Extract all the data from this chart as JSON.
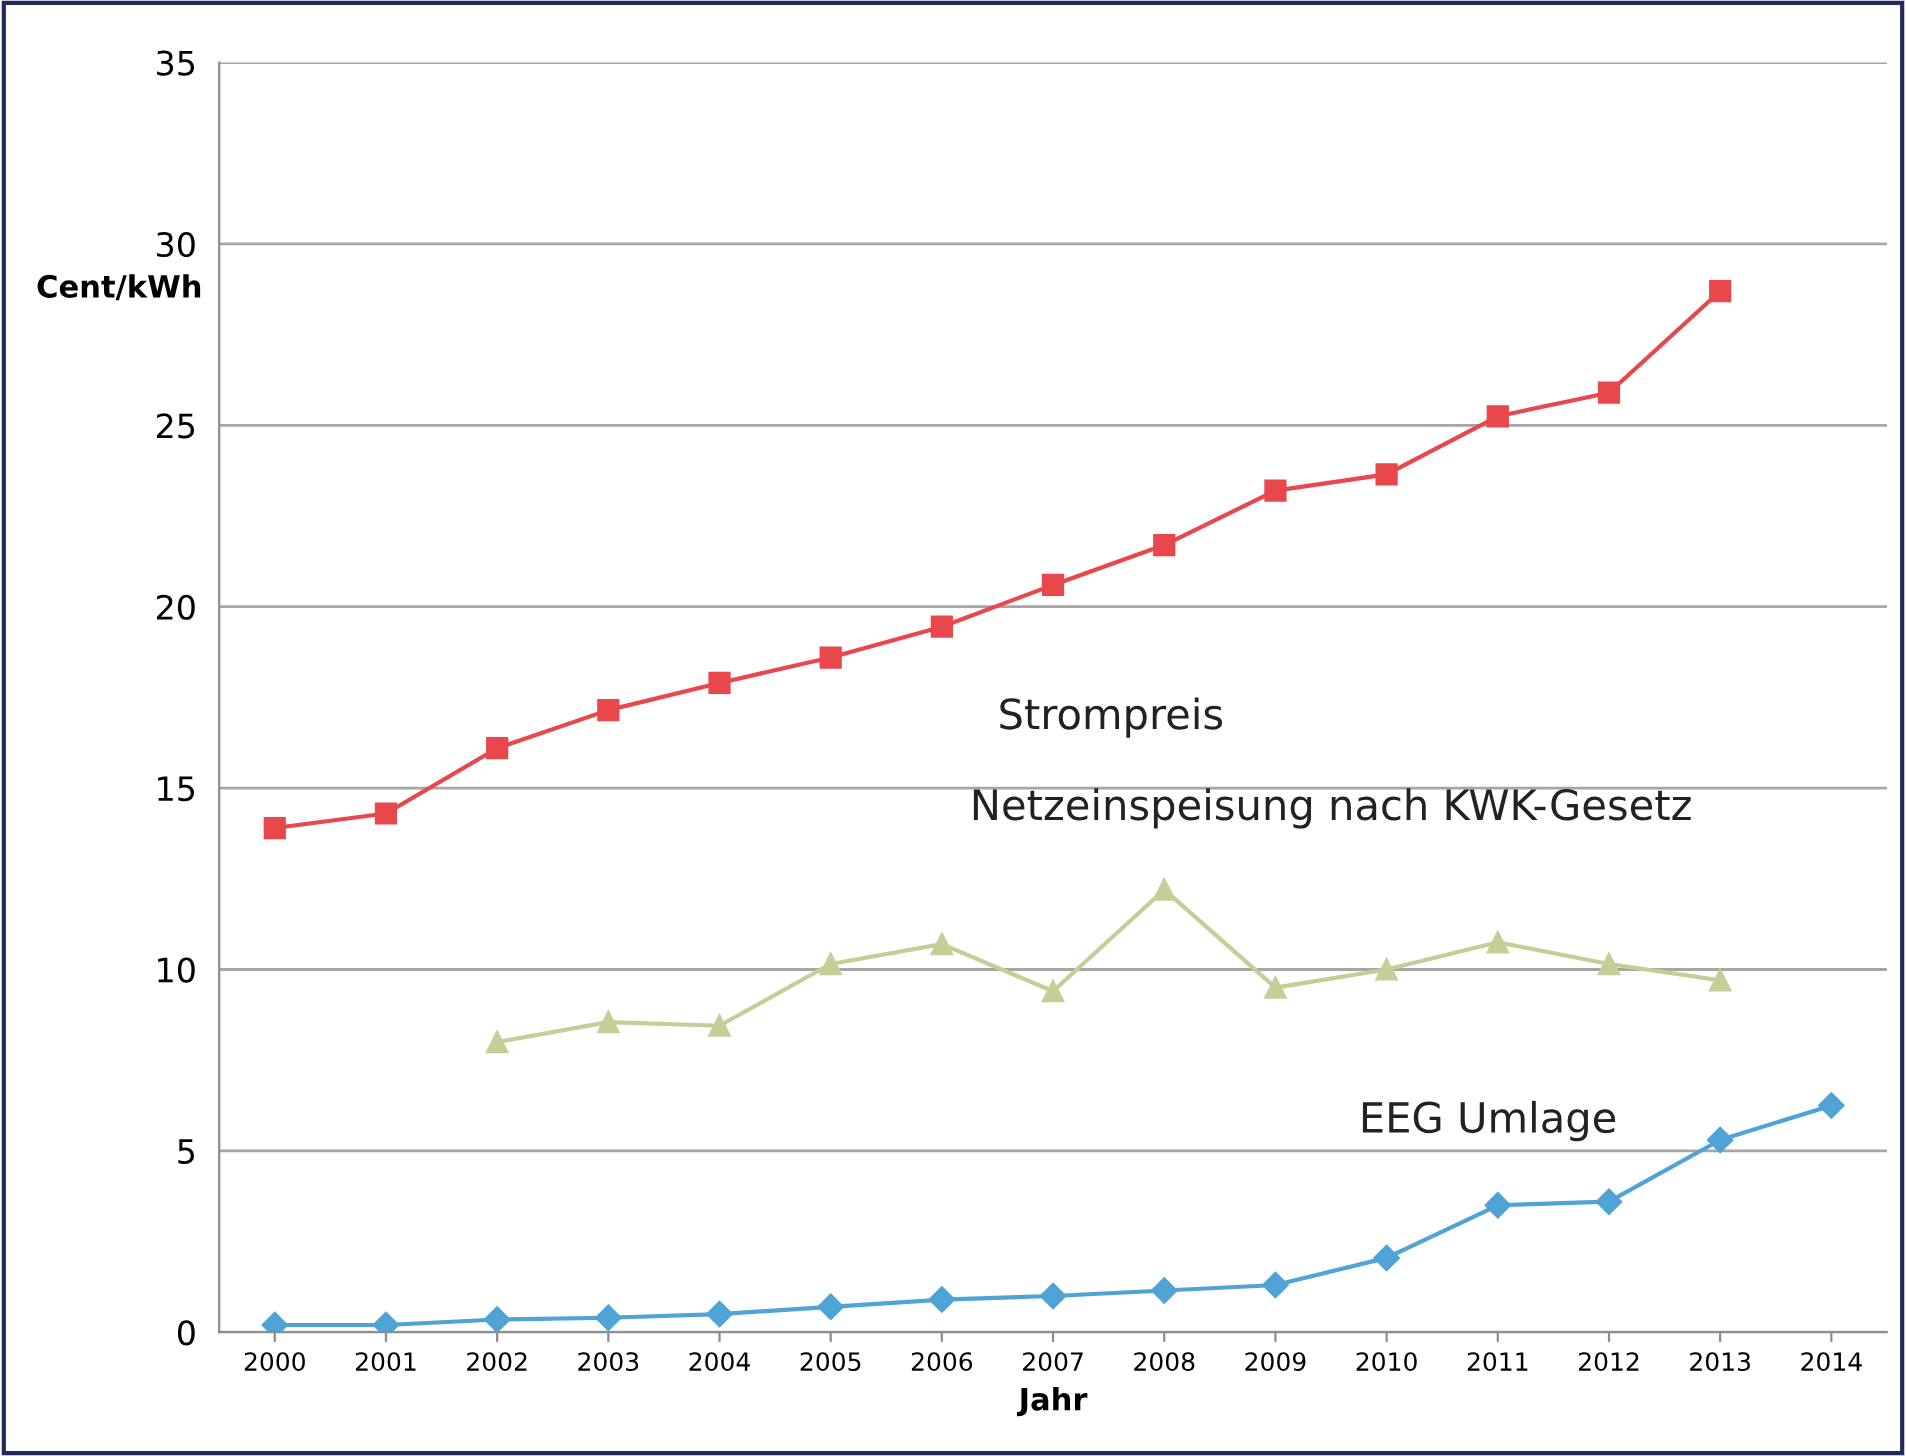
{
  "chart_data": {
    "type": "line",
    "xlabel": "Jahr",
    "ylabel": "Cent/kWh",
    "categories": [
      "2000",
      "2001",
      "2002",
      "2003",
      "2004",
      "2005",
      "2006",
      "2007",
      "2008",
      "2009",
      "2010",
      "2011",
      "2012",
      "2013",
      "2014"
    ],
    "series": [
      {
        "name": "Strompreis",
        "color": "#e8474c",
        "marker": "square",
        "values": [
          13.9,
          14.3,
          16.1,
          17.15,
          17.9,
          18.6,
          19.45,
          20.6,
          21.7,
          23.2,
          23.65,
          25.25,
          25.9,
          28.7,
          null
        ]
      },
      {
        "name": "Netzeinspeisung nach KWK-Gesetz",
        "color": "#c3cf96",
        "marker": "triangle",
        "values": [
          null,
          null,
          8.0,
          8.55,
          8.45,
          10.15,
          10.7,
          9.4,
          12.2,
          9.5,
          10.0,
          10.75,
          10.15,
          9.7,
          null
        ]
      },
      {
        "name": "EEG Umlage",
        "color": "#4fa3d6",
        "marker": "diamond",
        "values": [
          0.2,
          0.2,
          0.35,
          0.4,
          0.5,
          0.7,
          0.9,
          1.0,
          1.15,
          1.3,
          2.05,
          3.5,
          3.6,
          5.3,
          6.25
        ]
      }
    ],
    "ylim": [
      0,
      35
    ],
    "yticks": [
      0,
      5,
      10,
      15,
      20,
      25,
      30,
      35
    ],
    "grid": "y",
    "legend": false
  }
}
